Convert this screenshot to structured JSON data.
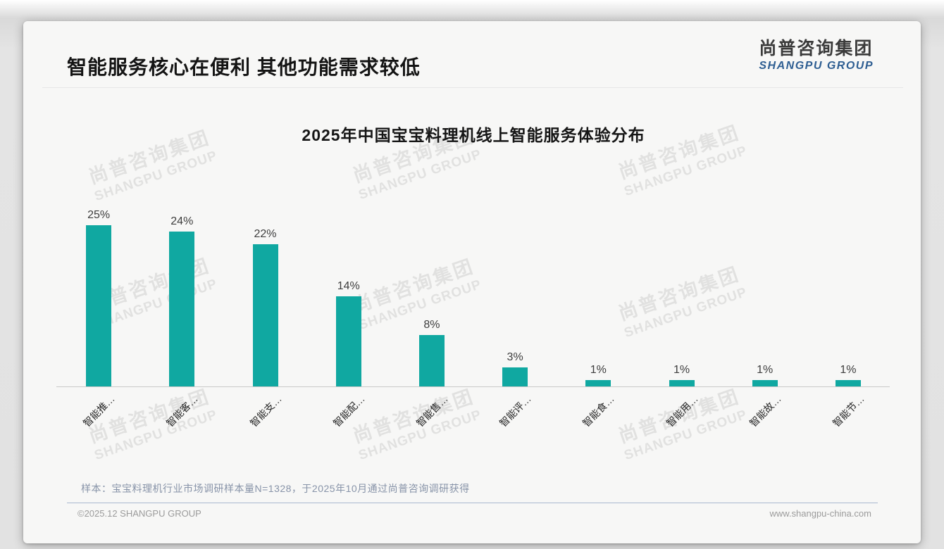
{
  "page": {
    "title": "智能服务核心在便利 其他功能需求较低",
    "logo": {
      "zh": "尚普咨询集团",
      "en": "SHANGPU GROUP"
    },
    "watermark": {
      "zh": "尚普咨询集团",
      "en": "SHANGPU GROUP"
    },
    "footnote": "样本：宝宝料理机行业市场调研样本量N=1328，于2025年10月通过尚普咨询调研获得",
    "footer": {
      "left": "©2025.12 SHANGPU GROUP",
      "right": "www.shangpu-china.com"
    }
  },
  "colors": {
    "bar": "#10a8a1",
    "logo_blue": "#2e5e92",
    "value_label": "#3d3d3d",
    "footnote_gray_blue": "#8793a8",
    "axis_gray": "#c9c9c9"
  },
  "chart_data": {
    "type": "bar",
    "title": "2025年中国宝宝料理机线上智能服务体验分布",
    "categories": [
      "智能推…",
      "智能客…",
      "智能支…",
      "智能配…",
      "智能售…",
      "智能评…",
      "智能食…",
      "智能用…",
      "智能故…",
      "智能节…"
    ],
    "values": [
      25,
      24,
      22,
      14,
      8,
      3,
      1,
      1,
      1,
      1
    ],
    "data_labels": [
      "25%",
      "24%",
      "22%",
      "14%",
      "8%",
      "3%",
      "1%",
      "1%",
      "1%",
      "1%"
    ],
    "unit": "%",
    "ylim": [
      0,
      27
    ],
    "xlabel": "",
    "ylabel": "",
    "grid": false,
    "legend": "none",
    "bar_color": "#10a8a1"
  }
}
